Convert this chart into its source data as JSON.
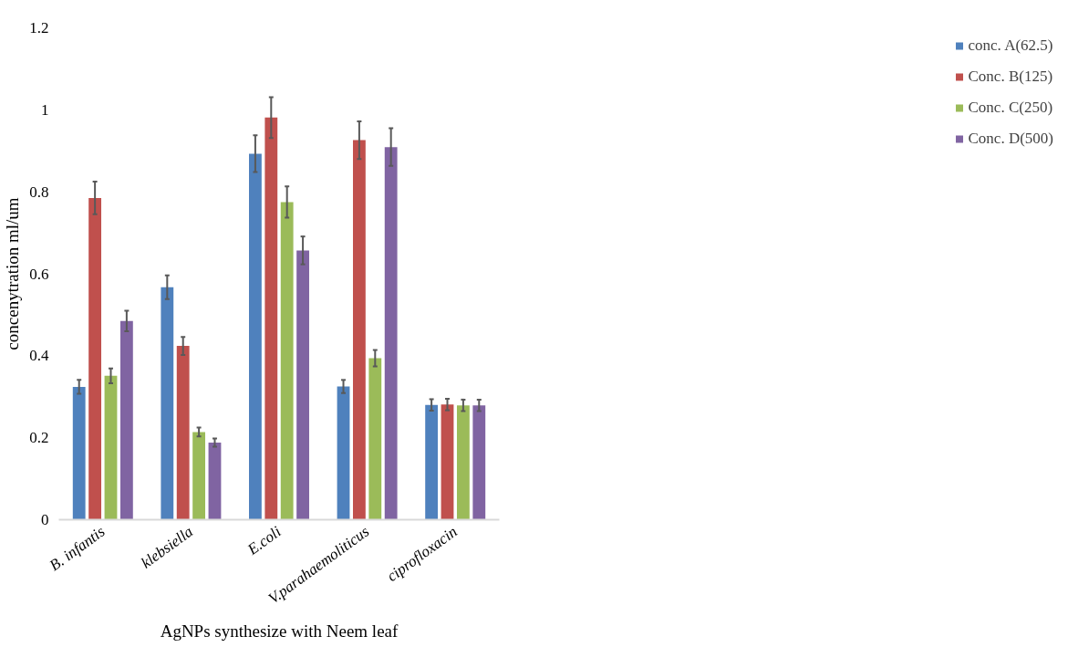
{
  "chart_data": {
    "type": "bar",
    "xlabel": "AgNPs synthesize with Neem leaf",
    "ylabel": "concenytration ml/um",
    "categories": [
      "B. infantis",
      "klebsiella",
      "E.coli",
      "V.parahaemoliticus",
      "ciprofloxacin"
    ],
    "series": [
      {
        "name": "conc. A(62.5)",
        "color": "#4f81bd",
        "values": [
          0.324,
          0.567,
          0.893,
          0.325,
          0.28
        ],
        "errors": [
          0.017,
          0.029,
          0.045,
          0.016,
          0.014
        ]
      },
      {
        "name": "Conc. B(125)",
        "color": "#c0504d",
        "values": [
          0.785,
          0.424,
          0.981,
          0.926,
          0.281
        ],
        "errors": [
          0.04,
          0.022,
          0.05,
          0.046,
          0.014
        ]
      },
      {
        "name": "Conc. C(250)",
        "color": "#9bbb59",
        "values": [
          0.351,
          0.214,
          0.775,
          0.394,
          0.279
        ],
        "errors": [
          0.018,
          0.011,
          0.038,
          0.02,
          0.014
        ]
      },
      {
        "name": "Conc. D(500)",
        "color": "#8064a2",
        "values": [
          0.485,
          0.188,
          0.657,
          0.909,
          0.279
        ],
        "errors": [
          0.025,
          0.01,
          0.034,
          0.046,
          0.014
        ]
      }
    ],
    "ylim": [
      0,
      1.2
    ],
    "yticks": [
      0,
      0.2,
      0.4,
      0.6,
      0.8,
      1,
      1.2
    ],
    "grid": false,
    "legend": "right"
  }
}
